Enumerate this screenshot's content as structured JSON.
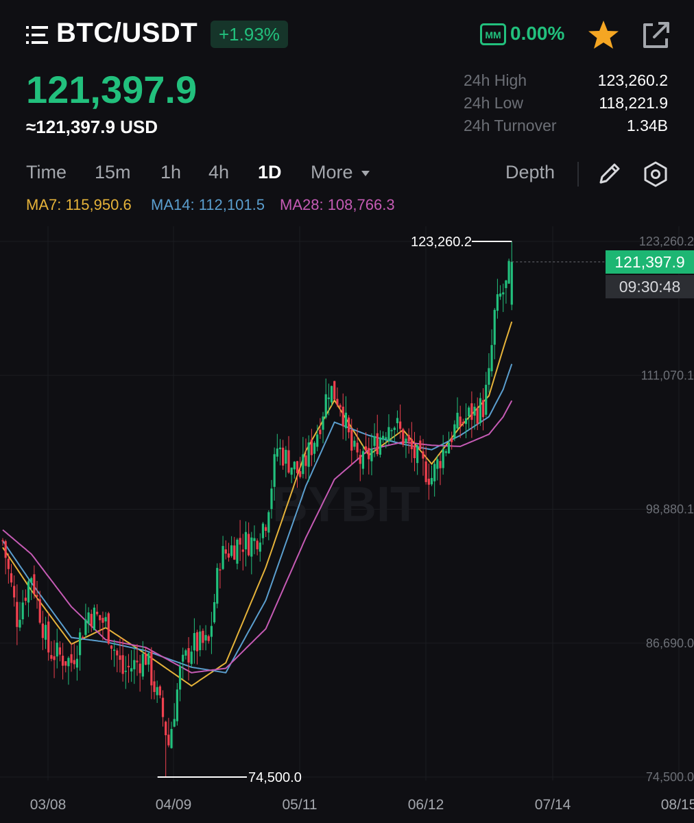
{
  "header": {
    "pair": "BTC/USDT",
    "change": "+1.93%",
    "mm_icon_label": "MM",
    "mm_value": "0.00%",
    "last_price": "121,397.9",
    "usd_price": "≈121,397.9 USD",
    "stats": [
      {
        "label": "24h High",
        "value": "123,260.2"
      },
      {
        "label": "24h Low",
        "value": "118,221.9"
      },
      {
        "label": "24h Turnover",
        "value": "1.34B"
      }
    ]
  },
  "tabs": {
    "time": "Time",
    "m15": "15m",
    "h1": "1h",
    "h4": "4h",
    "d1": "1D",
    "more": "More",
    "depth": "Depth",
    "active": "1D"
  },
  "ma_legend": {
    "ma7": "MA7: 115,950.6",
    "ma14": "MA14: 112,101.5",
    "ma28": "MA28: 108,766.3"
  },
  "colors": {
    "up": "#22c07d",
    "down": "#f0414f",
    "ma7": "#e6b33a",
    "ma14": "#5b9fcf",
    "ma28": "#c65bb5",
    "background": "#0f0f13"
  },
  "icons": [
    "menu-icon",
    "mm-icon",
    "star-icon",
    "share-icon",
    "dropdown-caret-icon",
    "pencil-icon",
    "gear-icon"
  ],
  "chart_data": {
    "type": "candlestick",
    "y_axis_labels": [
      "123,260.2",
      "111,070.1",
      "98,880.1",
      "86,690.0",
      "74,500.0"
    ],
    "ylim": [
      74500.0,
      123260.2
    ],
    "x_axis_labels": [
      "03/08",
      "04/09",
      "05/11",
      "06/12",
      "07/14",
      "08/15"
    ],
    "high_marker": "123,260.2",
    "low_marker": "74,500.0",
    "current_price_tag": "121,397.9",
    "countdown": "09:30:48",
    "watermark": "BYBIT",
    "series": [
      {
        "name": "MA7",
        "anchors": [
          [
            0,
            95400
          ],
          [
            10,
            91500
          ],
          [
            24,
            86600
          ],
          [
            36,
            88100
          ],
          [
            50,
            85700
          ],
          [
            66,
            82800
          ],
          [
            78,
            84900
          ],
          [
            92,
            93600
          ],
          [
            106,
            104200
          ],
          [
            116,
            108800
          ],
          [
            128,
            103800
          ],
          [
            140,
            106100
          ],
          [
            150,
            103000
          ],
          [
            160,
            106400
          ],
          [
            170,
            109200
          ],
          [
            175,
            113500
          ],
          [
            178,
            115950.6
          ]
        ]
      },
      {
        "name": "MA14",
        "anchors": [
          [
            0,
            96000
          ],
          [
            10,
            92200
          ],
          [
            24,
            87200
          ],
          [
            36,
            86800
          ],
          [
            50,
            86000
          ],
          [
            66,
            84500
          ],
          [
            78,
            84000
          ],
          [
            92,
            90600
          ],
          [
            106,
            101000
          ],
          [
            116,
            106800
          ],
          [
            128,
            105600
          ],
          [
            140,
            104800
          ],
          [
            150,
            104300
          ],
          [
            160,
            105600
          ],
          [
            170,
            107300
          ],
          [
            175,
            109800
          ],
          [
            178,
            112101.5
          ]
        ]
      },
      {
        "name": "MA28",
        "anchors": [
          [
            0,
            97000
          ],
          [
            10,
            94800
          ],
          [
            24,
            90000
          ],
          [
            36,
            87000
          ],
          [
            50,
            86300
          ],
          [
            66,
            84000
          ],
          [
            78,
            84400
          ],
          [
            92,
            88000
          ],
          [
            106,
            96300
          ],
          [
            116,
            101600
          ],
          [
            128,
            104300
          ],
          [
            140,
            105000
          ],
          [
            150,
            104700
          ],
          [
            160,
            104600
          ],
          [
            170,
            105700
          ],
          [
            175,
            107300
          ],
          [
            178,
            108766.3
          ]
        ]
      }
    ],
    "price_path": [
      [
        0,
        96000
      ],
      [
        5,
        89000
      ],
      [
        10,
        93000
      ],
      [
        16,
        86000
      ],
      [
        24,
        85000
      ],
      [
        30,
        89500
      ],
      [
        36,
        88500
      ],
      [
        42,
        84000
      ],
      [
        50,
        85500
      ],
      [
        56,
        80000
      ],
      [
        58,
        77500
      ],
      [
        62,
        84000
      ],
      [
        66,
        86500
      ],
      [
        72,
        86600
      ],
      [
        76,
        94500
      ],
      [
        82,
        95800
      ],
      [
        88,
        96000
      ],
      [
        92,
        98000
      ],
      [
        96,
        104500
      ],
      [
        104,
        102000
      ],
      [
        110,
        106000
      ],
      [
        114,
        110000
      ],
      [
        118,
        108800
      ],
      [
        122,
        104200
      ],
      [
        126,
        103000
      ],
      [
        132,
        105500
      ],
      [
        136,
        107200
      ],
      [
        142,
        104500
      ],
      [
        148,
        102400
      ],
      [
        150,
        101800
      ],
      [
        154,
        104200
      ],
      [
        158,
        106200
      ],
      [
        164,
        107600
      ],
      [
        168,
        108200
      ],
      [
        170,
        110800
      ],
      [
        172,
        116500
      ],
      [
        174,
        118200
      ],
      [
        176,
        119100
      ],
      [
        178,
        121397.9
      ]
    ]
  }
}
